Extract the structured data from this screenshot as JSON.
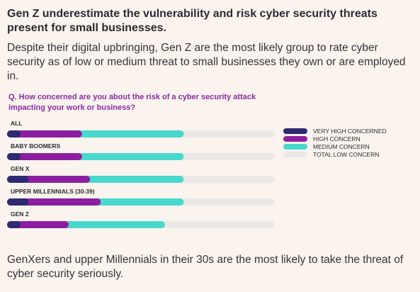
{
  "headline": "Gen Z underestimate the vulnerability and risk cyber security threats present for small businesses.",
  "intro": "Despite their digital upbringing, Gen Z are the most likely group to rate cyber security as of low or medium threat to small businesses they own or are employed in.",
  "question": "Q. How concerned are you about the risk of a cyber security attack impacting your work or business?",
  "footer": "GenXers and upper Millennials in their 30s are the most likely to take the threat of cyber security seriously.",
  "colors": {
    "very_high": "#2e2970",
    "high": "#8b1fa0",
    "medium": "#49d8cd",
    "total_low": "#ece8e6"
  },
  "chart_data": {
    "type": "bar",
    "orientation": "horizontal",
    "stacked": true,
    "question": "Q. How concerned are you about the risk of a cyber security attack impacting your work or business?",
    "categories": [
      "ALL",
      "BABY BOOMERS",
      "GEN X",
      "UPPER MILLENNIALS (30-39)",
      "GEN Z"
    ],
    "series": [
      {
        "name": "VERY HIGH CONCERNED",
        "color": "#2e2970",
        "values": [
          5,
          5,
          8,
          8,
          5
        ]
      },
      {
        "name": "HIGH CONCERN",
        "color": "#8b1fa0",
        "values": [
          23,
          23,
          23,
          27,
          18
        ]
      },
      {
        "name": "MEDIUM CONCERN",
        "color": "#49d8cd",
        "values": [
          38,
          38,
          35,
          31,
          36
        ]
      },
      {
        "name": "TOTAL LOW CONCERN",
        "color": "#ece8e6",
        "values": [
          34,
          34,
          34,
          34,
          41
        ]
      }
    ],
    "xlim": [
      0,
      100
    ],
    "legend_position": "right",
    "grid": false,
    "xlabel": "",
    "ylabel": ""
  }
}
